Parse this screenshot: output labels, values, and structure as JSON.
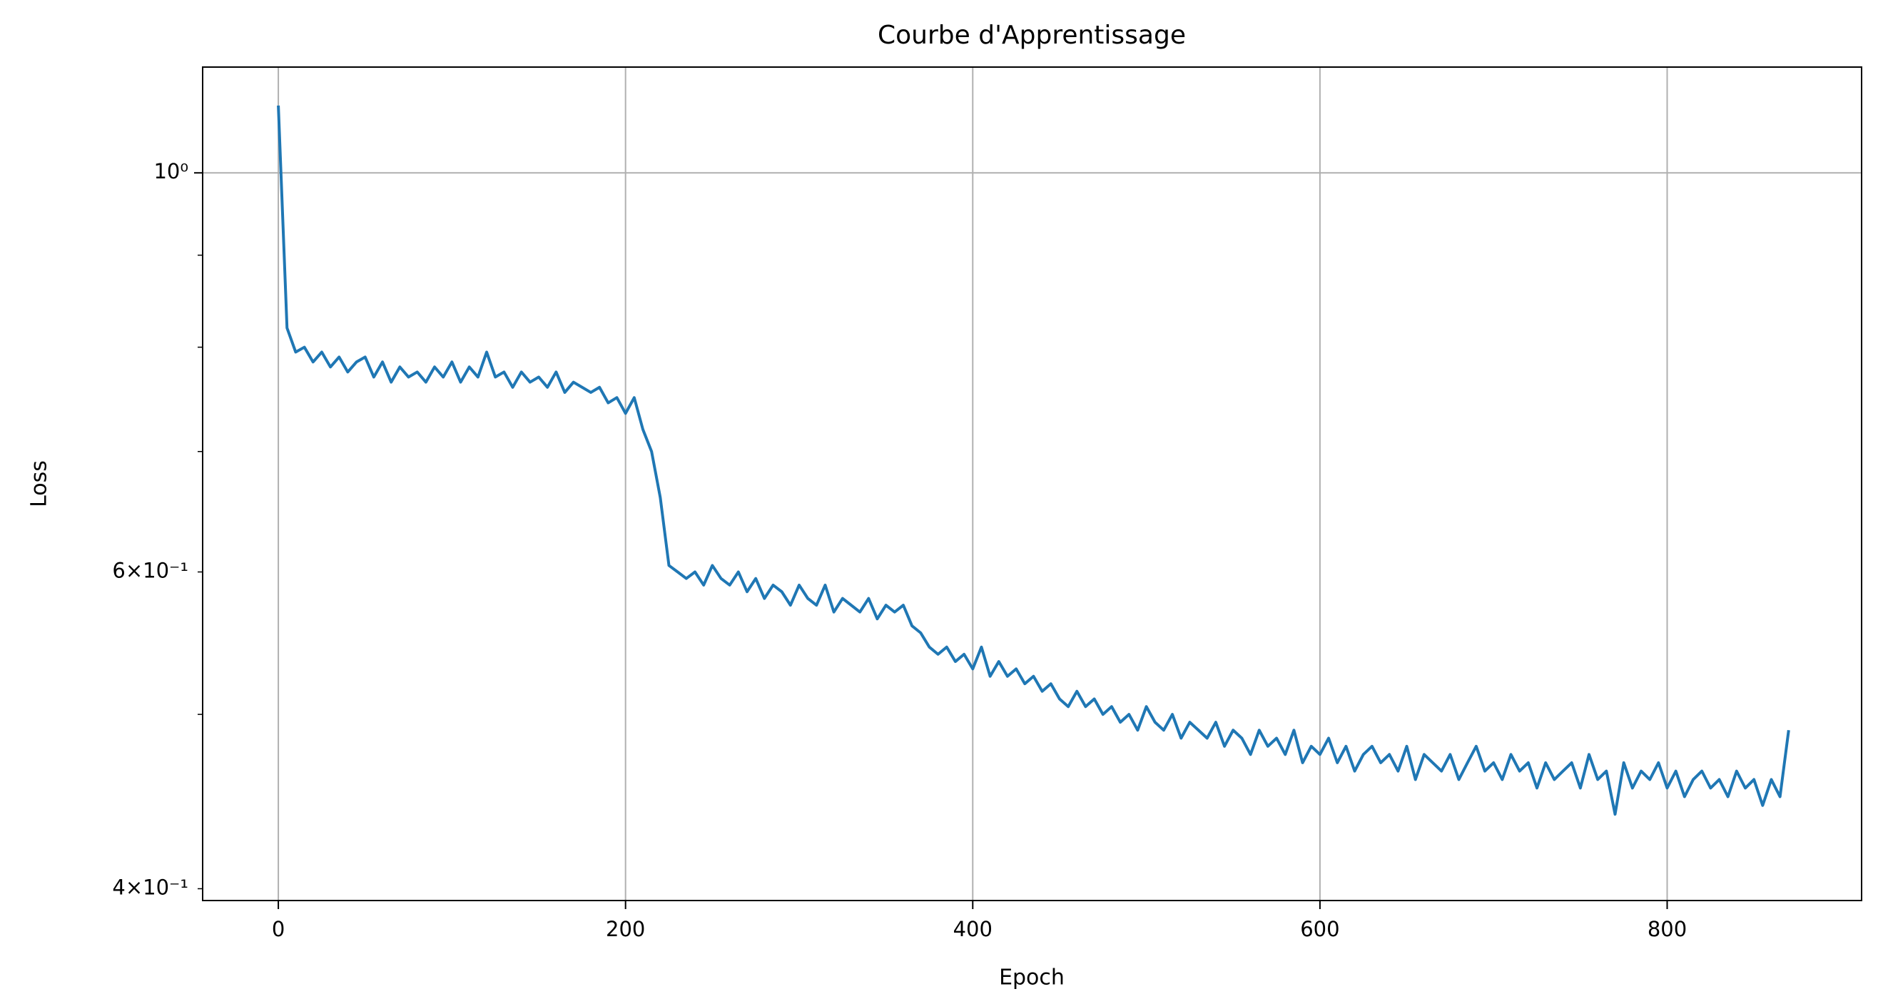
{
  "chart_data": {
    "type": "line",
    "title": "Courbe d'Apprentissage",
    "xlabel": "Epoch",
    "ylabel": "Loss",
    "log_y": true,
    "grid": true,
    "xlim": [
      -43.6,
      912
    ],
    "xticks": [
      0,
      200,
      400,
      600,
      800
    ],
    "ylim": [
      0.394,
      1.145
    ],
    "yticks": [
      {
        "value": 1,
        "label": "10⁰"
      }
    ],
    "yminorticks": [
      {
        "value": 0.4,
        "label": "4×10⁻¹"
      },
      0.5,
      {
        "value": 0.6,
        "label": "6×10⁻¹"
      },
      0.7,
      0.8,
      0.9
    ],
    "x": [
      0,
      5,
      10,
      15,
      20,
      25,
      30,
      35,
      40,
      45,
      50,
      55,
      60,
      65,
      70,
      75,
      80,
      85,
      90,
      95,
      100,
      105,
      110,
      115,
      120,
      125,
      130,
      135,
      140,
      145,
      150,
      155,
      160,
      165,
      170,
      175,
      180,
      185,
      190,
      195,
      200,
      205,
      210,
      215,
      220,
      225,
      230,
      235,
      240,
      245,
      250,
      255,
      260,
      265,
      270,
      275,
      280,
      285,
      290,
      295,
      300,
      305,
      310,
      315,
      320,
      325,
      330,
      335,
      340,
      345,
      350,
      355,
      360,
      365,
      370,
      375,
      380,
      385,
      390,
      395,
      400,
      405,
      410,
      415,
      420,
      425,
      430,
      435,
      440,
      445,
      450,
      455,
      460,
      465,
      470,
      475,
      480,
      485,
      490,
      495,
      500,
      505,
      510,
      515,
      520,
      525,
      530,
      535,
      540,
      545,
      550,
      555,
      560,
      565,
      570,
      575,
      580,
      585,
      590,
      595,
      600,
      605,
      610,
      615,
      620,
      625,
      630,
      635,
      640,
      645,
      650,
      655,
      660,
      665,
      670,
      675,
      680,
      685,
      690,
      695,
      700,
      705,
      710,
      715,
      720,
      725,
      730,
      735,
      740,
      745,
      750,
      755,
      760,
      765,
      770,
      775,
      780,
      785,
      790,
      795,
      800,
      805,
      810,
      815,
      820,
      825,
      830,
      835,
      840,
      845,
      850,
      855,
      860,
      865,
      870
    ],
    "series": [
      {
        "color": "#1f77b4",
        "values": [
          1.09,
          0.82,
          0.795,
          0.8,
          0.785,
          0.795,
          0.78,
          0.79,
          0.775,
          0.785,
          0.79,
          0.77,
          0.785,
          0.765,
          0.78,
          0.77,
          0.775,
          0.765,
          0.78,
          0.77,
          0.785,
          0.765,
          0.78,
          0.77,
          0.795,
          0.77,
          0.775,
          0.76,
          0.775,
          0.765,
          0.77,
          0.76,
          0.775,
          0.755,
          0.765,
          0.76,
          0.755,
          0.76,
          0.745,
          0.75,
          0.735,
          0.75,
          0.72,
          0.7,
          0.66,
          0.605,
          0.6,
          0.595,
          0.6,
          0.59,
          0.605,
          0.595,
          0.59,
          0.6,
          0.585,
          0.595,
          0.58,
          0.59,
          0.585,
          0.575,
          0.59,
          0.58,
          0.575,
          0.59,
          0.57,
          0.58,
          0.575,
          0.57,
          0.58,
          0.565,
          0.575,
          0.57,
          0.575,
          0.56,
          0.555,
          0.545,
          0.54,
          0.545,
          0.535,
          0.54,
          0.53,
          0.545,
          0.525,
          0.535,
          0.525,
          0.53,
          0.52,
          0.525,
          0.515,
          0.52,
          0.51,
          0.505,
          0.515,
          0.505,
          0.51,
          0.5,
          0.505,
          0.495,
          0.5,
          0.49,
          0.505,
          0.495,
          0.49,
          0.5,
          0.485,
          0.495,
          0.49,
          0.485,
          0.495,
          0.48,
          0.49,
          0.485,
          0.475,
          0.49,
          0.48,
          0.485,
          0.475,
          0.49,
          0.47,
          0.48,
          0.475,
          0.485,
          0.47,
          0.48,
          0.465,
          0.475,
          0.48,
          0.47,
          0.475,
          0.465,
          0.48,
          0.46,
          0.475,
          0.47,
          0.465,
          0.475,
          0.46,
          0.47,
          0.48,
          0.465,
          0.47,
          0.46,
          0.475,
          0.465,
          0.47,
          0.455,
          0.47,
          0.46,
          0.465,
          0.47,
          0.455,
          0.475,
          0.46,
          0.465,
          0.44,
          0.47,
          0.455,
          0.465,
          0.46,
          0.47,
          0.455,
          0.465,
          0.45,
          0.46,
          0.465,
          0.455,
          0.46,
          0.45,
          0.465,
          0.455,
          0.46,
          0.445,
          0.46,
          0.45,
          0.49
        ]
      }
    ]
  }
}
